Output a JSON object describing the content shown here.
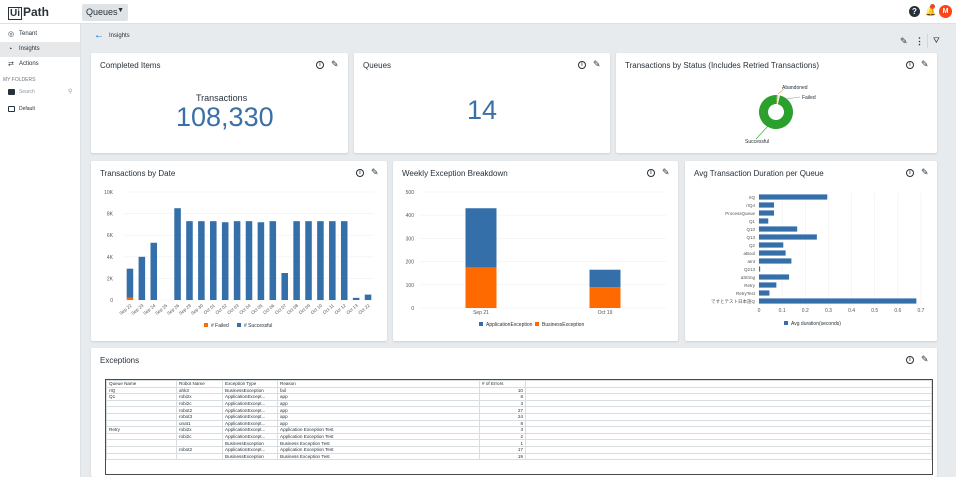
{
  "app": {
    "logo": "Path",
    "logo_box": "Ui",
    "service": "Queues",
    "avatar": "M"
  },
  "sidebar": {
    "items": [
      {
        "label": "Tenant",
        "icon": "globe-icon",
        "active": false
      },
      {
        "label": "Insights",
        "icon": "insights-icon",
        "active": true
      },
      {
        "label": "Actions",
        "icon": "actions-icon",
        "active": false
      }
    ],
    "folders_label": "MY FOLDERS",
    "search_placeholder": "Search",
    "default_folder": "Default"
  },
  "page": {
    "title": "Insights"
  },
  "cards": {
    "completed": {
      "title": "Completed Items",
      "label": "Transactions",
      "value": "108,330"
    },
    "queues": {
      "title": "Queues",
      "value": "14"
    },
    "status": {
      "title": "Transactions by Status (Includes Retried Transactions)"
    },
    "by_date": {
      "title": "Transactions by Date"
    },
    "weekly": {
      "title": "Weekly Exception Breakdown"
    },
    "duration": {
      "title": "Avg Transaction Duration per Queue"
    },
    "exceptions": {
      "title": "Exceptions"
    }
  },
  "chart_data": [
    {
      "type": "pie",
      "chart": "status",
      "labels": [
        "Abandoned",
        "Failed",
        "Successful"
      ],
      "values": [
        1,
        2,
        97
      ],
      "colors": [
        "#f5a623",
        "#e8e8e8",
        "#2ca02c"
      ]
    },
    {
      "type": "bar",
      "chart": "by_date",
      "categories": [
        "Sep 22",
        "Sep 23",
        "Sep 24",
        "Sep 25",
        "Sep 26",
        "Sep 29",
        "Sep 30",
        "Oct 01",
        "Oct 02",
        "Oct 03",
        "Oct 04",
        "Oct 05",
        "Oct 06",
        "Oct 07",
        "Oct 08",
        "Oct 09",
        "Oct 10",
        "Oct 11",
        "Oct 12",
        "Oct 13",
        "Oct 22"
      ],
      "series": [
        {
          "name": "# Failed",
          "color": "#ff6a00",
          "values": [
            200,
            0,
            0,
            0,
            0,
            0,
            0,
            0,
            0,
            0,
            0,
            0,
            0,
            0,
            0,
            0,
            0,
            0,
            0,
            0,
            0
          ]
        },
        {
          "name": "# Successful",
          "color": "#346fa9",
          "values": [
            2700,
            4000,
            5300,
            0,
            8500,
            7300,
            7300,
            7300,
            7200,
            7300,
            7300,
            7200,
            7300,
            2500,
            7300,
            7300,
            7300,
            7300,
            7300,
            200,
            500
          ]
        }
      ],
      "yticks": [
        "0",
        "2K",
        "4K",
        "6K",
        "8K",
        "10K"
      ],
      "ylim": [
        0,
        10000
      ]
    },
    {
      "type": "bar",
      "chart": "weekly",
      "categories": [
        "Sep 21",
        "Oct 19"
      ],
      "series": [
        {
          "name": "ApplicationException",
          "color": "#346fa9",
          "values": [
            255,
            75
          ]
        },
        {
          "name": "BusinessException",
          "color": "#ff6a00",
          "values": [
            175,
            90
          ]
        }
      ],
      "yticks": [
        "0",
        "100",
        "200",
        "300",
        "400",
        "500"
      ],
      "ylim": [
        0,
        500
      ]
    },
    {
      "type": "bar",
      "chart": "duration",
      "orientation": "horizontal",
      "categories": [
        "rIQ",
        "rIQ4",
        "ProcessQueue",
        "Q1",
        "Q10",
        "Q13",
        "Q2",
        "aBool",
        "aInt",
        "Q213",
        "aString",
        "Retry",
        "RetryTest",
        "ですとテスト日本語Q"
      ],
      "series": [
        {
          "name": "Avg duration(seconds)",
          "color": "#346fa9",
          "values": [
            0.295,
            0.065,
            0.065,
            0.04,
            0.165,
            0.25,
            0.105,
            0.115,
            0.14,
            0.005,
            0.13,
            0.075,
            0.045,
            0.68
          ]
        }
      ],
      "xticks": [
        "0",
        "0.1",
        "0.2",
        "0.3",
        "0.4",
        "0.5",
        "0.6",
        "0.7"
      ],
      "xlim": [
        0,
        0.7
      ]
    }
  ],
  "exceptions_table": {
    "headers": [
      "Queue Name",
      "Robot Name",
      "Exception Type",
      "Reason",
      "# of Errors"
    ],
    "rows": [
      [
        "rIQ",
        "ahk3",
        "BusinessException",
        "fail",
        "10"
      ],
      [
        "Q1",
        "robi2x",
        "ApplicationExcept...",
        "app",
        "8"
      ],
      [
        "",
        "robi2c",
        "ApplicationExcept...",
        "app",
        "3"
      ],
      [
        "",
        "robot2",
        "ApplicationExcept...",
        "app",
        "27"
      ],
      [
        "",
        "robot3",
        "ApplicationExcept...",
        "app",
        "24"
      ],
      [
        "",
        "unat1",
        "ApplicationExcept...",
        "app",
        "8"
      ],
      [
        "Retry",
        "robi2x",
        "ApplicationExcept...",
        "Application Exception Test",
        "3"
      ],
      [
        "",
        "robi2c",
        "ApplicationExcept...",
        "Application Exception Test",
        "2"
      ],
      [
        "",
        "",
        "BusinessException",
        "Business Exception Test",
        "1"
      ],
      [
        "",
        "robot2",
        "ApplicationExcept...",
        "Application Exception Test",
        "17"
      ],
      [
        "",
        "",
        "BusinessException",
        "Business Exception Test",
        "19"
      ]
    ]
  }
}
